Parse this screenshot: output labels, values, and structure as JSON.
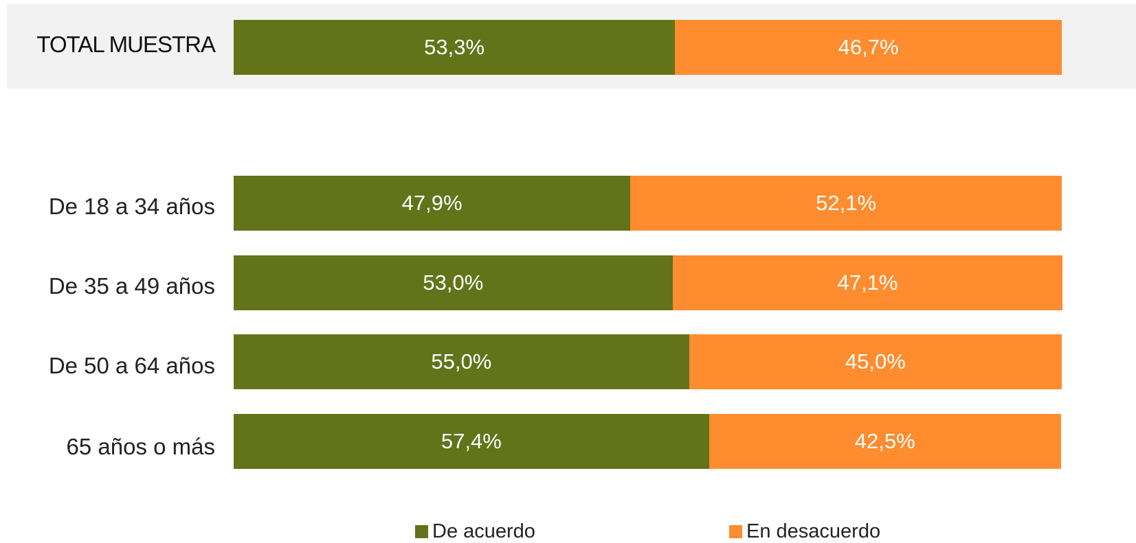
{
  "chart_data": {
    "type": "bar",
    "orientation": "horizontal",
    "stacked": true,
    "categories": [
      "TOTAL MUESTRA",
      "De 18 a 34 años",
      "De 35 a 49 años",
      "De 50 a 64 años",
      "65 años o más"
    ],
    "series": [
      {
        "name": "De acuerdo",
        "color": "#63731a",
        "values": [
          53.3,
          47.9,
          53.0,
          55.0,
          57.4
        ],
        "labels": [
          "53,3%",
          "47,9%",
          "53,0%",
          "55,0%",
          "57,4%"
        ]
      },
      {
        "name": "En desacuerdo",
        "color": "#ff8c2e",
        "values": [
          46.7,
          52.1,
          47.1,
          45.0,
          42.5
        ],
        "labels": [
          "46,7%",
          "52,1%",
          "47,1%",
          "45,0%",
          "42,5%"
        ]
      }
    ],
    "xlim": [
      0,
      100
    ],
    "grid": false,
    "legend": "bottom",
    "highlighted_category": "TOTAL MUESTRA",
    "highlight_color": "#f2f2f2"
  }
}
